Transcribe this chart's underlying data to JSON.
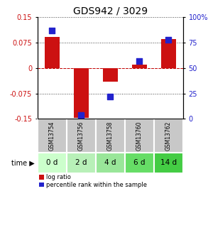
{
  "title": "GDS942 / 3029",
  "samples": [
    "GSM13754",
    "GSM13756",
    "GSM13758",
    "GSM13760",
    "GSM13762"
  ],
  "time_labels": [
    "0 d",
    "2 d",
    "4 d",
    "6 d",
    "14 d"
  ],
  "log_ratio": [
    0.091,
    -0.155,
    -0.04,
    0.01,
    0.085
  ],
  "percentile": [
    87,
    4,
    22,
    57,
    78
  ],
  "ylim_left": [
    -0.15,
    0.15
  ],
  "ylim_right": [
    0,
    100
  ],
  "yticks_left": [
    -0.15,
    -0.075,
    0,
    0.075,
    0.15
  ],
  "yticks_right": [
    0,
    25,
    50,
    75,
    100
  ],
  "ytick_labels_left": [
    "-0.15",
    "-0.075",
    "0",
    "0.075",
    "0.15"
  ],
  "ytick_labels_right": [
    "0",
    "25",
    "50",
    "75",
    "100%"
  ],
  "red_color": "#cc1111",
  "blue_color": "#2222cc",
  "bar_width": 0.5,
  "grid_color": "#444444",
  "zero_line_color": "#cc0000",
  "title_fontsize": 10,
  "tick_fontsize": 7,
  "sample_bg_color": "#c8c8c8",
  "time_bg_colors": [
    "#ccffcc",
    "#b8f0b8",
    "#99e699",
    "#66dd66",
    "#44cc44"
  ]
}
